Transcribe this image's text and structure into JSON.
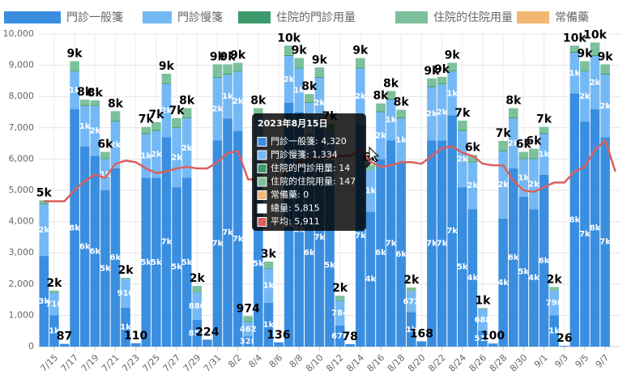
{
  "chart_data": {
    "type": "bar",
    "stacked": true,
    "categories": [
      null,
      "7/15",
      null,
      "7/17",
      null,
      "7/19",
      null,
      "7/21",
      null,
      "7/23",
      null,
      "7/25",
      null,
      "7/27",
      null,
      "7/29",
      null,
      "7/31",
      null,
      "8/2",
      null,
      "8/4",
      null,
      "8/6",
      null,
      "8/8",
      null,
      "8/10",
      null,
      "8/12",
      null,
      "8/14",
      null,
      "8/16",
      null,
      "8/18",
      null,
      "8/20",
      null,
      "8/22",
      null,
      "8/24",
      null,
      "8/26",
      null,
      "8/28",
      null,
      "8/30",
      null,
      "9/1",
      null,
      "9/3",
      null,
      "9/5",
      null,
      "9/7",
      null
    ],
    "series": [
      {
        "name": "門診一般箋",
        "color": "#3a8ee0",
        "values": [
          2900,
          1000,
          87,
          7600,
          6400,
          6100,
          5000,
          5700,
          1250,
          110,
          5400,
          5400,
          6700,
          5100,
          5400,
          857,
          224,
          6600,
          7300,
          6900,
          328,
          5300,
          1400,
          136,
          7800,
          7500,
          6000,
          7000,
          5200,
          678,
          78,
          7100,
          4320,
          6000,
          6600,
          5900,
          1100,
          168,
          6600,
          6600,
          7400,
          5100,
          4400,
          515,
          100,
          4100,
          5700,
          4800,
          4400,
          5500,
          1000,
          26,
          8100,
          7200,
          7600,
          6700,
          null
        ],
        "value_labels": [
          "3k",
          "1k",
          "87",
          "8k",
          "6k",
          "6k",
          "5k",
          "6k",
          "1k",
          "110",
          "5k",
          "5k",
          "7k",
          "5k",
          "5k",
          "857",
          "224",
          "7k",
          "7k",
          "7k",
          "328",
          "5k",
          "1k",
          "136",
          "8k",
          "8k",
          "6k",
          "7k",
          "5k",
          "678",
          "78",
          "7k",
          "4k",
          "6k",
          "7k",
          "6k",
          "1k",
          "168",
          "7k",
          "7k",
          "7k",
          "5k",
          "4k",
          "515",
          "100",
          "4k",
          "6k",
          "5k",
          "4k",
          "6k",
          "1k",
          "26",
          "8k",
          "7k",
          "8k",
          "7k",
          null
        ]
      },
      {
        "name": "門診慢箋",
        "color": "#74b9f5",
        "values": [
          1650,
          710,
          0,
          1200,
          1300,
          1600,
          1000,
          1500,
          910,
          0,
          1400,
          1500,
          1700,
          1900,
          1900,
          880,
          0,
          2000,
          1400,
          1900,
          462,
          2100,
          1100,
          0,
          1500,
          1400,
          1800,
          1600,
          1700,
          784,
          0,
          1800,
          1334,
          1500,
          1300,
          1400,
          672,
          0,
          1700,
          1800,
          1400,
          1800,
          1500,
          688,
          0,
          2150,
          1600,
          1200,
          1600,
          1300,
          798,
          0,
          1300,
          1600,
          1700,
          2000,
          null
        ],
        "value_labels": [
          "2k",
          "710",
          null,
          "1k",
          "1k",
          "2k",
          "1k",
          "2k",
          "910",
          null,
          "1k",
          "2k",
          "2k",
          "2k",
          "2k",
          "880",
          null,
          "2k",
          "1k",
          "2k",
          "462",
          "2k",
          "1k",
          null,
          "2k",
          "1k",
          "2k",
          "2k",
          "2k",
          "784",
          null,
          "2k",
          "1k",
          "2k",
          "1k",
          "1k",
          "672",
          null,
          "2k",
          "2k",
          "1k",
          "2k",
          "2k",
          "688",
          null,
          "2k",
          "2k",
          "1k",
          "2k",
          "1k",
          "798",
          null,
          "1k",
          "2k",
          "2k",
          "2k",
          null
        ]
      },
      {
        "name": "住院的門診用量",
        "color": "#3c9a6c",
        "values": [
          30,
          10,
          0,
          30,
          30,
          30,
          30,
          30,
          10,
          0,
          30,
          30,
          30,
          30,
          30,
          10,
          0,
          30,
          30,
          30,
          23,
          30,
          20,
          0,
          30,
          30,
          30,
          30,
          30,
          20,
          0,
          30,
          14,
          30,
          30,
          30,
          10,
          0,
          30,
          30,
          30,
          30,
          30,
          10,
          0,
          30,
          30,
          30,
          30,
          30,
          10,
          0,
          30,
          30,
          30,
          30,
          null
        ]
      },
      {
        "name": "住院的住院用量",
        "color": "#7cc19c",
        "values": [
          100,
          74,
          0,
          300,
          170,
          150,
          200,
          300,
          30,
          0,
          200,
          250,
          300,
          280,
          300,
          195,
          0,
          400,
          300,
          250,
          161,
          200,
          200,
          0,
          300,
          300,
          250,
          300,
          200,
          146,
          0,
          300,
          147,
          250,
          250,
          250,
          109,
          0,
          250,
          200,
          250,
          300,
          200,
          20,
          0,
          300,
          300,
          200,
          300,
          200,
          100,
          0,
          200,
          300,
          400,
          300,
          null
        ]
      },
      {
        "name": "常備藥",
        "color": "#f2b872",
        "values": [
          0,
          0,
          0,
          0,
          0,
          0,
          0,
          0,
          0,
          0,
          0,
          0,
          0,
          0,
          0,
          0,
          0,
          0,
          0,
          0,
          0,
          0,
          0,
          0,
          0,
          0,
          0,
          0,
          0,
          0,
          0,
          0,
          0,
          0,
          0,
          0,
          0,
          0,
          0,
          0,
          0,
          0,
          0,
          0,
          0,
          0,
          0,
          0,
          0,
          0,
          0,
          0,
          0,
          0,
          0,
          0,
          null
        ]
      }
    ],
    "totals": [
      4680,
      1794,
      87,
      9130,
      7900,
      7880,
      6230,
      7530,
      2200,
      110,
      7030,
      7180,
      8730,
      7310,
      7630,
      1942,
      224,
      9030,
      9030,
      9080,
      974,
      7630,
      2720,
      136,
      9630,
      9230,
      8080,
      8930,
      7130,
      1628,
      78,
      9230,
      5815,
      7780,
      8180,
      7580,
      1891,
      168,
      8580,
      8630,
      9080,
      7230,
      6130,
      1233,
      100,
      6580,
      7630,
      6230,
      6330,
      7030,
      1908,
      26,
      9630,
      9130,
      9730,
      9030,
      null
    ],
    "total_labels": [
      "5k",
      "2k",
      "87",
      "9k",
      "8k",
      "8k",
      "6k",
      "8k",
      "2k",
      "110",
      "7k",
      "7k",
      "9k",
      "7k",
      "8k",
      "2k",
      "224",
      "9k",
      "9k",
      "9k",
      "974",
      "8k",
      "3k",
      "136",
      "10k",
      "9k",
      "8k",
      "9k",
      "7k",
      "2k",
      "78",
      "9k",
      "6k",
      "8k",
      "8k",
      "8k",
      "2k",
      "168",
      "9k",
      "9k",
      "9k",
      "7k",
      "6k",
      "1k",
      "100",
      "7k",
      "8k",
      "6k",
      "6k",
      "7k",
      "2k",
      "26",
      "10k",
      "9k",
      "10k",
      "9k",
      null
    ],
    "line": {
      "name": "平均",
      "color": "#d9605e",
      "values": [
        4650,
        4650,
        4650,
        5000,
        5300,
        5500,
        5400,
        5850,
        5950,
        5900,
        5700,
        5550,
        5600,
        5700,
        5750,
        5700,
        5700,
        5900,
        6200,
        6250,
        5350,
        5350,
        5300,
        5300,
        5700,
        5900,
        6000,
        6050,
        6050,
        6100,
        6100,
        6300,
        5911,
        5750,
        5800,
        5900,
        5900,
        5850,
        6100,
        6350,
        6400,
        6200,
        6100,
        5850,
        5800,
        5800,
        5300,
        5000,
        4950,
        5100,
        5250,
        5250,
        5600,
        5750,
        6300,
        6600,
        5600
      ]
    },
    "ylim": [
      0,
      10000
    ],
    "yticks": [
      0,
      {
        "value": 1000,
        "label": "1,000"
      },
      {
        "value": 2000,
        "label": "2,000"
      },
      {
        "value": 3000,
        "label": "3,000"
      },
      {
        "value": 4000,
        "label": "4,000"
      },
      {
        "value": 5000,
        "label": "5,000"
      },
      {
        "value": 6000,
        "label": "6,000"
      },
      {
        "value": 7000,
        "label": "7,000"
      },
      {
        "value": 8000,
        "label": "8,000"
      },
      {
        "value": 9000,
        "label": "9,000"
      },
      {
        "value": 10000,
        "label": "10,000"
      }
    ],
    "grid": true,
    "legend": "top",
    "tooltip": {
      "title": "2023年8月15日",
      "index": 32,
      "items": [
        {
          "name": "門診一般箋",
          "value": 4320,
          "label": "4,320"
        },
        {
          "name": "門診慢箋",
          "value": 1334,
          "label": "1,334"
        },
        {
          "name": "住院的門診用量",
          "value": 14,
          "label": "14"
        },
        {
          "name": "住院的住院用量",
          "value": 147,
          "label": "147"
        },
        {
          "name": "常備藥",
          "value": 0,
          "label": "0"
        },
        {
          "name": "總量",
          "value": 5815,
          "label": "5,815"
        },
        {
          "name": "平均",
          "value": 5911,
          "label": "5,911"
        }
      ]
    }
  }
}
